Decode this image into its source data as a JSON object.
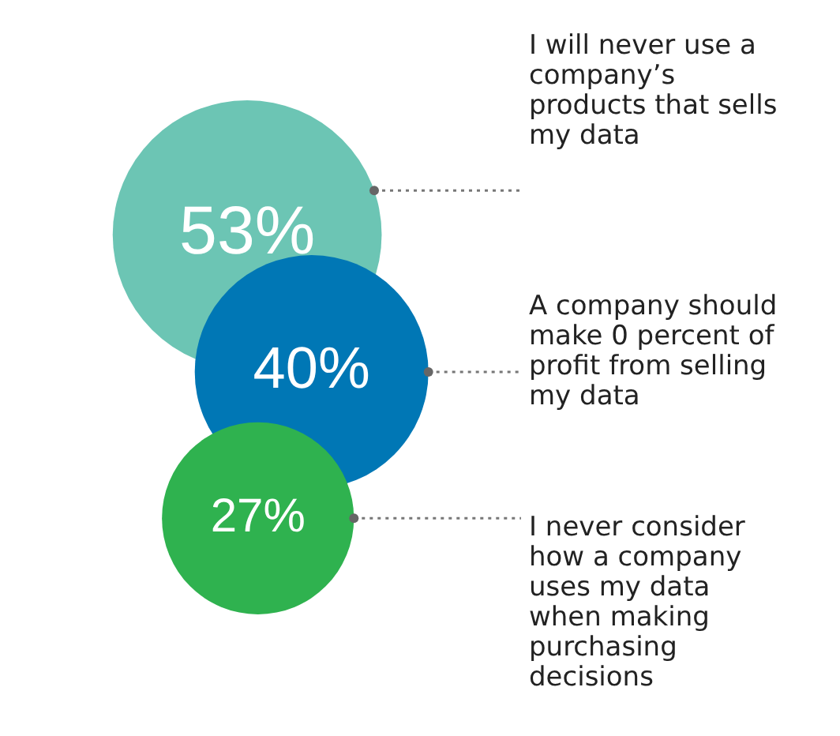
{
  "chart_data": {
    "type": "other",
    "categories": [
      "I will never use a company’s products that sells my data",
      "A company should make 0 percent of profit from selling my data",
      "I never consider how a company uses my data when making purchasing decisions"
    ],
    "values": [
      53,
      40,
      27
    ],
    "value_labels": [
      "53%",
      "40%",
      "27%"
    ],
    "colors": [
      "#6cc5b4",
      "#0077b5",
      "#2fb24f"
    ]
  }
}
